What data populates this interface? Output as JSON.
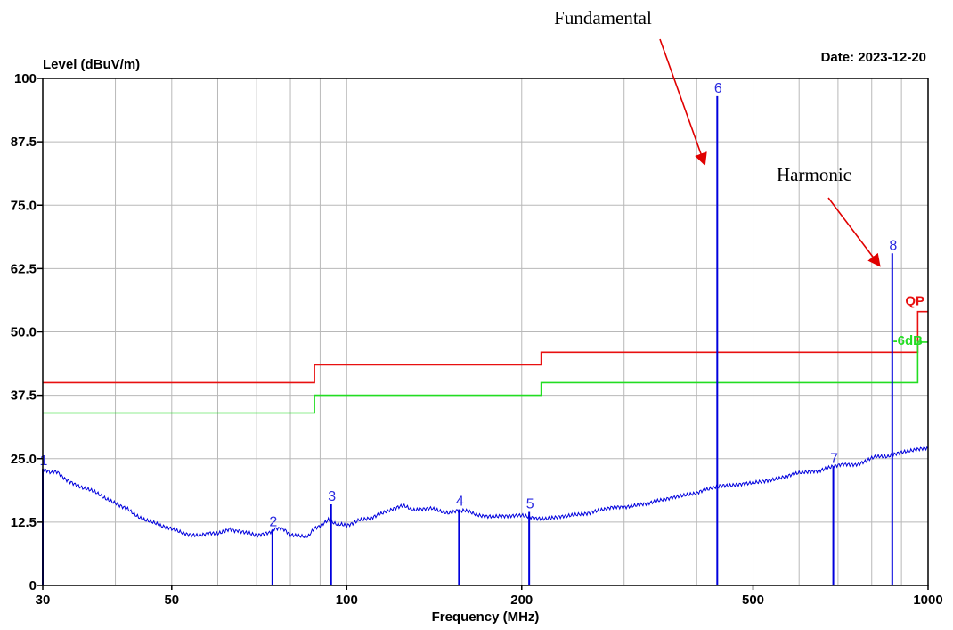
{
  "chart_data": {
    "type": "line",
    "ylabel": "Level (dBuV/m)",
    "xlabel": "Frequency (MHz)",
    "date_label": "Date: 2023-12-20",
    "xscale": "log",
    "xlim": [
      30,
      1000
    ],
    "ylim": [
      0,
      100
    ],
    "grid": true,
    "y_ticks": [
      0,
      12.5,
      25.0,
      37.5,
      50.0,
      62.5,
      75.0,
      87.5,
      100
    ],
    "y_tick_labels": [
      "0",
      "12.5",
      "25.0",
      "37.5",
      "50.0",
      "62.5",
      "75.0",
      "87.5",
      "100"
    ],
    "x_ticks": [
      30,
      50,
      100,
      200,
      500,
      1000
    ],
    "x_tick_labels": [
      "30",
      "50",
      "100",
      "200",
      "500",
      "1000"
    ],
    "x_minor_grid": [
      40,
      60,
      70,
      80,
      90,
      300,
      400,
      600,
      700,
      800,
      900
    ],
    "series": [
      {
        "name": "QP",
        "color": "#e81010",
        "type": "step",
        "points": [
          [
            30,
            40
          ],
          [
            88,
            40
          ],
          [
            88,
            43.5
          ],
          [
            216,
            43.5
          ],
          [
            216,
            46
          ],
          [
            960,
            46
          ],
          [
            960,
            54
          ],
          [
            1000,
            54
          ]
        ]
      },
      {
        "name": "-6dB",
        "color": "#22dd22",
        "type": "step",
        "points": [
          [
            30,
            34
          ],
          [
            88,
            34
          ],
          [
            88,
            37.5
          ],
          [
            216,
            37.5
          ],
          [
            216,
            40
          ],
          [
            960,
            40
          ],
          [
            960,
            48
          ],
          [
            1000,
            48
          ]
        ]
      },
      {
        "name": "",
        "color": "#0000dd",
        "type": "line",
        "points": [
          [
            30,
            23
          ],
          [
            31,
            22.5
          ],
          [
            32,
            22
          ],
          [
            33,
            21
          ],
          [
            35,
            19.5
          ],
          [
            38,
            17.5
          ],
          [
            40,
            16.5
          ],
          [
            42,
            15
          ],
          [
            45,
            13
          ],
          [
            48,
            11.5
          ],
          [
            50,
            11
          ],
          [
            53,
            10
          ],
          [
            55,
            10
          ],
          [
            58,
            10.5
          ],
          [
            60,
            10.5
          ],
          [
            63,
            11
          ],
          [
            65,
            11
          ],
          [
            68,
            10.5
          ],
          [
            70,
            10
          ],
          [
            73,
            10.5
          ],
          [
            75,
            11
          ],
          [
            78,
            11
          ],
          [
            80,
            10
          ],
          [
            83,
            9.5
          ],
          [
            86,
            10
          ],
          [
            88,
            11
          ],
          [
            90,
            12
          ],
          [
            93,
            13
          ],
          [
            95,
            12.5
          ],
          [
            98,
            12
          ],
          [
            100,
            12
          ],
          [
            105,
            13
          ],
          [
            110,
            13.5
          ],
          [
            115,
            14
          ],
          [
            120,
            15
          ],
          [
            125,
            15.5
          ],
          [
            130,
            15
          ],
          [
            140,
            15
          ],
          [
            150,
            14.5
          ],
          [
            155,
            15
          ],
          [
            160,
            14.5
          ],
          [
            170,
            14
          ],
          [
            180,
            13.5
          ],
          [
            190,
            13.5
          ],
          [
            200,
            14
          ],
          [
            210,
            13
          ],
          [
            220,
            13
          ],
          [
            240,
            13.5
          ],
          [
            260,
            14
          ],
          [
            280,
            15
          ],
          [
            300,
            15.5
          ],
          [
            330,
            16
          ],
          [
            360,
            17
          ],
          [
            400,
            18
          ],
          [
            420,
            19
          ],
          [
            440,
            19.5
          ],
          [
            460,
            20
          ],
          [
            500,
            20.5
          ],
          [
            550,
            21
          ],
          [
            600,
            22
          ],
          [
            650,
            22.5
          ],
          [
            700,
            23.5
          ],
          [
            750,
            24
          ],
          [
            800,
            25
          ],
          [
            850,
            25.5
          ],
          [
            900,
            26
          ],
          [
            950,
            26.5
          ],
          [
            1000,
            27
          ]
        ]
      }
    ],
    "spikes": [
      {
        "x": 30,
        "y": 23
      },
      {
        "x": 74.5,
        "y": 11
      },
      {
        "x": 94,
        "y": 16
      },
      {
        "x": 156,
        "y": 15
      },
      {
        "x": 206,
        "y": 14.5
      },
      {
        "x": 433.9,
        "y": 96.5
      },
      {
        "x": 687,
        "y": 23.5
      },
      {
        "x": 867.8,
        "y": 65.5
      }
    ],
    "markers": [
      {
        "label": "1",
        "x": 30,
        "y": 23
      },
      {
        "label": "2",
        "x": 74.5,
        "y": 11
      },
      {
        "label": "3",
        "x": 94,
        "y": 16
      },
      {
        "label": "4",
        "x": 156,
        "y": 15
      },
      {
        "label": "5",
        "x": 206,
        "y": 14.5
      },
      {
        "label": "6",
        "x": 433.9,
        "y": 96.5
      },
      {
        "label": "7",
        "x": 687,
        "y": 23.5
      },
      {
        "label": "8",
        "x": 867.8,
        "y": 65.5
      }
    ],
    "limit_labels": [
      {
        "text": "QP",
        "color": "#e81010"
      },
      {
        "text": "-6dB",
        "color": "#22dd22"
      }
    ],
    "annotations": [
      {
        "text": "Fundamental",
        "target_x": 433.9,
        "target_y": 83
      },
      {
        "text": "Harmonic",
        "target_x": 867.8,
        "target_y": 63
      }
    ]
  }
}
